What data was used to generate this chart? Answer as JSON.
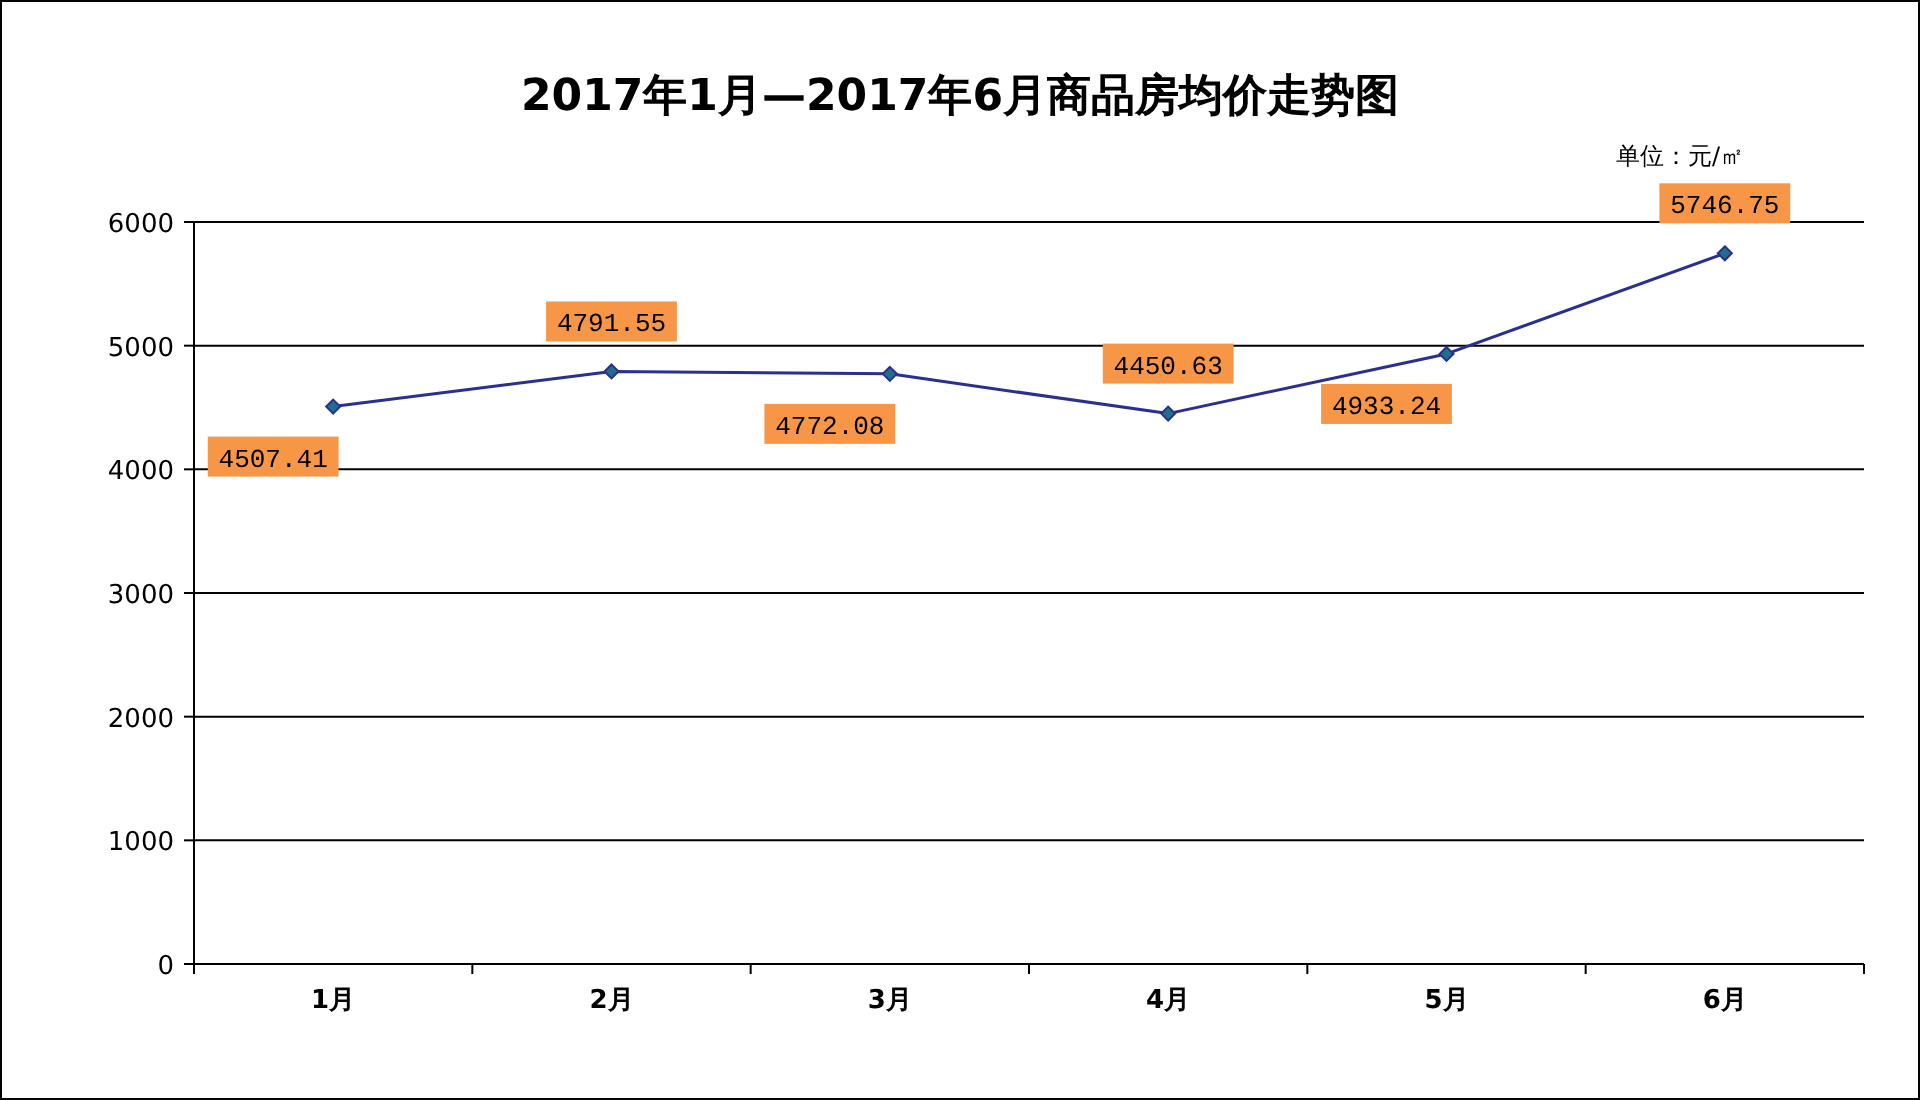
{
  "chart_data": {
    "type": "line",
    "title": "2017年1月—2017年6月商品房均价走势图",
    "annotations": [
      "单位：元/㎡"
    ],
    "categories": [
      "1月",
      "2月",
      "3月",
      "4月",
      "5月",
      "6月"
    ],
    "series": [
      {
        "color": "#2b2f8f",
        "values": [
          4507.41,
          4791.55,
          4772.08,
          4450.63,
          4933.24,
          5746.75
        ]
      }
    ],
    "ylim": [
      0,
      6000
    ],
    "yticks": [
      0,
      1000,
      2000,
      3000,
      4000,
      5000,
      6000
    ],
    "grid": "y",
    "marker": "diamond",
    "line_style": "solid",
    "data_labels": true
  }
}
